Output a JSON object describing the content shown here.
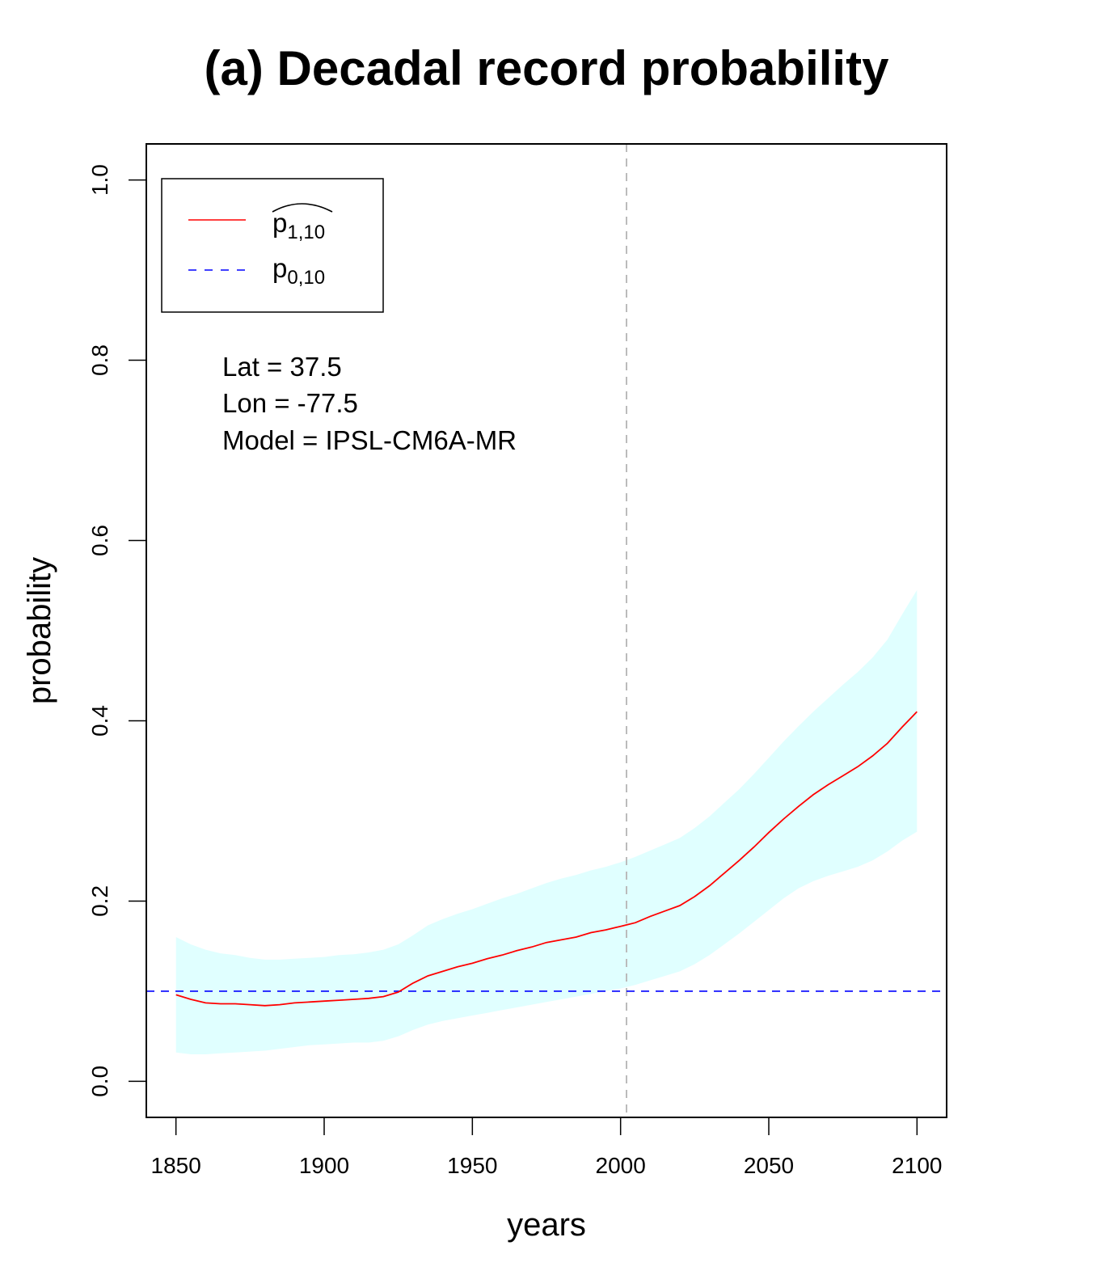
{
  "chart_data": {
    "type": "line",
    "title": "(a) Decadal record probability",
    "xlabel": "years",
    "ylabel": "probability",
    "xlim": [
      1840,
      2110
    ],
    "ylim": [
      -0.04,
      1.04
    ],
    "x_ticks": [
      1850,
      1900,
      1950,
      2000,
      2050,
      2100
    ],
    "x_tick_labels": [
      "1850",
      "1900",
      "1950",
      "2000",
      "2050",
      "2100"
    ],
    "y_ticks": [
      0.0,
      0.2,
      0.4,
      0.6,
      0.8,
      1.0
    ],
    "y_tick_labels": [
      "0.0",
      "0.2",
      "0.4",
      "0.6",
      "0.8",
      "1.0"
    ],
    "grid": false,
    "legend": {
      "position": "top-left",
      "entries": [
        {
          "base": "p",
          "sub": "1,10",
          "hat": true,
          "color": "#ff0000",
          "style": "solid"
        },
        {
          "base": "p",
          "sub": "0,10",
          "hat": false,
          "color": "#0000ff",
          "style": "dashed"
        }
      ]
    },
    "annotations": [
      "Lat = 37.5",
      "Lon = -77.5",
      "Model = IPSL-CM6A-MR"
    ],
    "vline": {
      "x": 2002,
      "color": "#bbbbbb",
      "style": "dashed"
    },
    "hline": {
      "y": 0.1,
      "color": "#0000ff",
      "style": "dashed"
    },
    "series": [
      {
        "color": "#ff0000",
        "style": "solid",
        "x": [
          1850,
          1855,
          1860,
          1865,
          1870,
          1875,
          1880,
          1885,
          1890,
          1895,
          1900,
          1905,
          1910,
          1915,
          1920,
          1925,
          1930,
          1935,
          1940,
          1945,
          1950,
          1955,
          1960,
          1965,
          1970,
          1975,
          1980,
          1985,
          1990,
          1995,
          2000,
          2005,
          2010,
          2015,
          2020,
          2025,
          2030,
          2035,
          2040,
          2045,
          2050,
          2055,
          2060,
          2065,
          2070,
          2075,
          2080,
          2085,
          2090,
          2095,
          2100
        ],
        "y": [
          0.096,
          0.091,
          0.087,
          0.086,
          0.086,
          0.085,
          0.084,
          0.085,
          0.087,
          0.088,
          0.089,
          0.09,
          0.091,
          0.092,
          0.094,
          0.099,
          0.109,
          0.117,
          0.122,
          0.127,
          0.131,
          0.136,
          0.14,
          0.145,
          0.149,
          0.154,
          0.157,
          0.16,
          0.165,
          0.168,
          0.172,
          0.176,
          0.183,
          0.189,
          0.195,
          0.205,
          0.217,
          0.231,
          0.245,
          0.26,
          0.276,
          0.291,
          0.305,
          0.318,
          0.329,
          0.339,
          0.349,
          0.361,
          0.375,
          0.393,
          0.41
        ]
      }
    ],
    "band": {
      "color": "#e0ffff",
      "x": [
        1850,
        1855,
        1860,
        1865,
        1870,
        1875,
        1880,
        1885,
        1890,
        1895,
        1900,
        1905,
        1910,
        1915,
        1920,
        1925,
        1930,
        1935,
        1940,
        1945,
        1950,
        1955,
        1960,
        1965,
        1970,
        1975,
        1980,
        1985,
        1990,
        1995,
        2000,
        2005,
        2010,
        2015,
        2020,
        2025,
        2030,
        2035,
        2040,
        2045,
        2050,
        2055,
        2060,
        2065,
        2070,
        2075,
        2080,
        2085,
        2090,
        2095,
        2100
      ],
      "upper": [
        0.16,
        0.152,
        0.146,
        0.142,
        0.14,
        0.137,
        0.135,
        0.135,
        0.136,
        0.137,
        0.138,
        0.14,
        0.141,
        0.143,
        0.146,
        0.152,
        0.162,
        0.173,
        0.18,
        0.186,
        0.191,
        0.197,
        0.203,
        0.208,
        0.214,
        0.22,
        0.225,
        0.229,
        0.234,
        0.238,
        0.243,
        0.249,
        0.256,
        0.263,
        0.27,
        0.281,
        0.294,
        0.309,
        0.324,
        0.341,
        0.359,
        0.377,
        0.394,
        0.41,
        0.425,
        0.44,
        0.454,
        0.47,
        0.49,
        0.518,
        0.545
      ],
      "lower": [
        0.032,
        0.03,
        0.03,
        0.031,
        0.032,
        0.033,
        0.034,
        0.036,
        0.038,
        0.04,
        0.041,
        0.042,
        0.043,
        0.043,
        0.045,
        0.05,
        0.057,
        0.063,
        0.067,
        0.07,
        0.073,
        0.076,
        0.079,
        0.082,
        0.085,
        0.088,
        0.091,
        0.094,
        0.097,
        0.1,
        0.103,
        0.107,
        0.112,
        0.117,
        0.122,
        0.13,
        0.14,
        0.152,
        0.164,
        0.177,
        0.19,
        0.203,
        0.214,
        0.222,
        0.228,
        0.233,
        0.238,
        0.245,
        0.255,
        0.267,
        0.277
      ]
    }
  }
}
